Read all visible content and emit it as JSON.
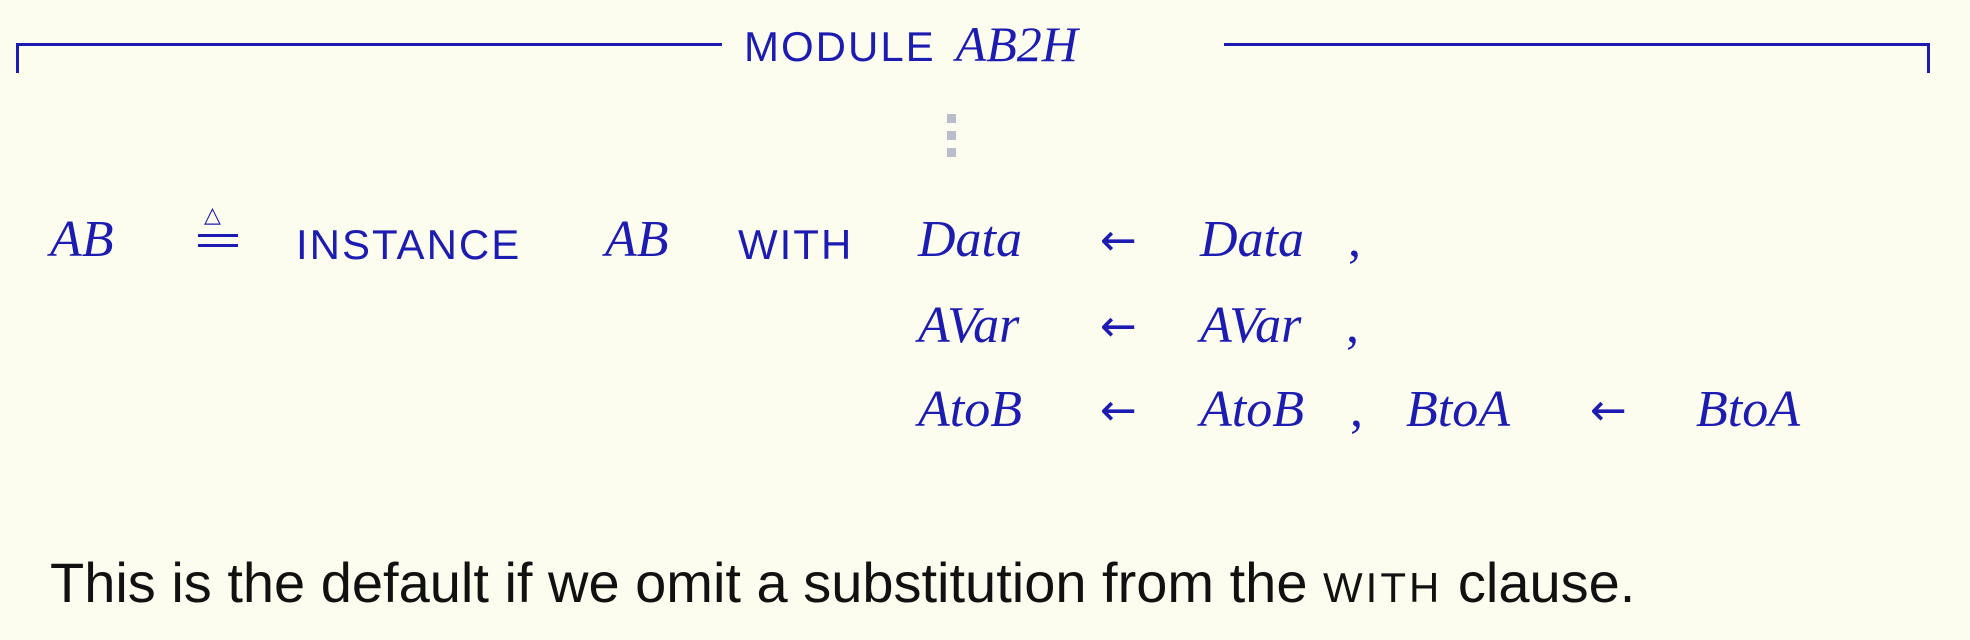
{
  "module": {
    "keyword": "MODULE",
    "name": "AB2H"
  },
  "definition": {
    "lhs": "AB",
    "defeq_symbol": "≜",
    "instance_keyword": "INSTANCE",
    "instance_module": "AB",
    "with_keyword": "WITH",
    "arrow": "←",
    "substitutions": [
      {
        "from": "Data",
        "to": "Data",
        "sep": ","
      },
      {
        "from": "AVar",
        "to": "AVar",
        "sep": ","
      },
      {
        "from": "AtoB",
        "to": "AtoB",
        "sep": ","
      },
      {
        "from": "BtoA",
        "to": "BtoA",
        "sep": ""
      }
    ]
  },
  "caption": {
    "before": "This is the default if we omit a substitution from the",
    "keyword": "WITH",
    "after": "clause."
  },
  "colors": {
    "background": "#fdfdef",
    "ink": "#1c1cb3",
    "dots": "#b9bccb",
    "text": "#111111"
  }
}
